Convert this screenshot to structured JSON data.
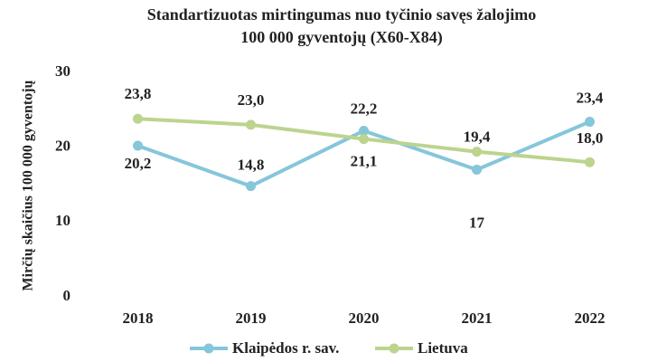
{
  "chart_data": {
    "type": "line",
    "title": [
      "Standartizuotas mirtingumas  nuo tyčinio savęs žalojimo",
      "100 000 gyventojų (X60-X84)"
    ],
    "y_label": "Mirčių  skaičius 100 000 gyventojų",
    "categories": [
      "2018",
      "2019",
      "2020",
      "2021",
      "2022"
    ],
    "series": [
      {
        "name": "Klaipėdos r. sav.",
        "color": "#85c6db",
        "values": [
          20.2,
          14.8,
          22.2,
          17,
          23.4
        ],
        "value_labels": [
          "20,2",
          "14,8",
          "22,2",
          "17",
          "23,4"
        ]
      },
      {
        "name": "Lietuva",
        "color": "#bcd48e",
        "values": [
          23.8,
          23.0,
          21.1,
          19.4,
          18.0
        ],
        "value_labels": [
          "23,8",
          "23,0",
          "21,1",
          "19,4",
          "18,0"
        ]
      }
    ],
    "ylim": [
      0,
      30
    ],
    "yticks": [
      0,
      10,
      20,
      30
    ],
    "grid": false,
    "legend": "bottom"
  }
}
